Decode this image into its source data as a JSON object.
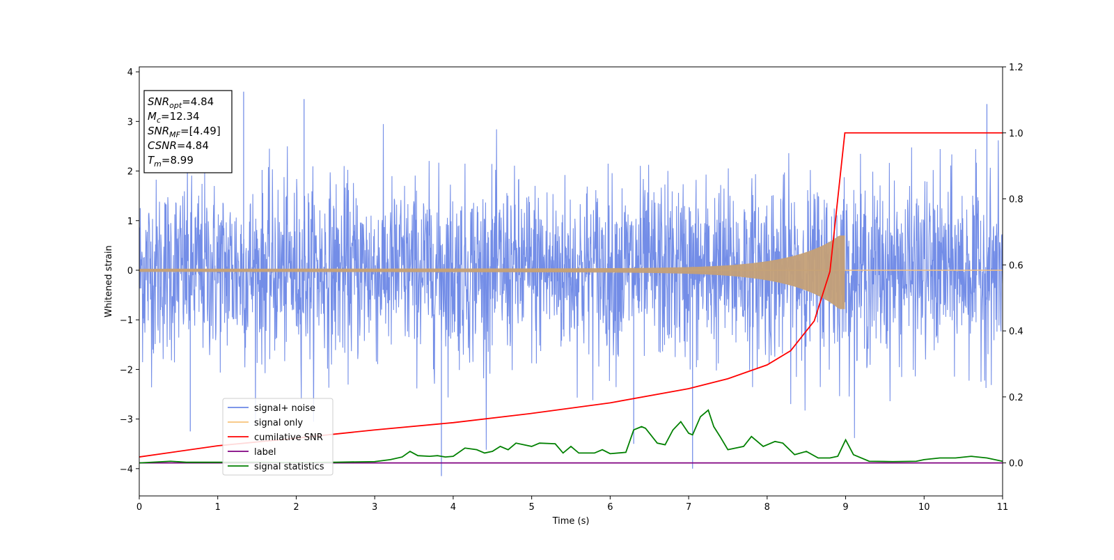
{
  "chart_data": {
    "type": "line",
    "xlabel": "Time (s)",
    "ylabel": "Whitened strain",
    "xlim": [
      0,
      11
    ],
    "ylim_left": [
      -4.55,
      4.1
    ],
    "ylim_right": [
      -0.1,
      1.2
    ],
    "x_ticks": [
      0,
      1,
      2,
      3,
      4,
      5,
      6,
      7,
      8,
      9,
      10,
      11
    ],
    "y_ticks_left": [
      4,
      3,
      2,
      1,
      0,
      -1,
      -2,
      -3,
      -4
    ],
    "y_tick_labels_left": [
      "4",
      "3",
      "2",
      "1",
      "0",
      "−1",
      "−2",
      "−3",
      "−4"
    ],
    "y_ticks_right": [
      1.2,
      1.0,
      0.8,
      0.6,
      0.4,
      0.2,
      0.0
    ],
    "y_tick_labels_right": [
      "1.2",
      "1.0",
      "0.8",
      "0.6",
      "0.4",
      "0.2",
      "0.0"
    ],
    "grid": false,
    "legend_position": "lower-left",
    "legend": [
      {
        "label": "signal+ noise",
        "color": "#6b87e6"
      },
      {
        "label": "signal only",
        "color": "#f7c27a"
      },
      {
        "label": "cumilative SNR",
        "color": "#ff0000"
      },
      {
        "label": "label",
        "color": "#800080"
      },
      {
        "label": "signal statistics",
        "color": "#008000"
      }
    ],
    "annotation": {
      "lines": [
        {
          "main": "SNR",
          "sub": "opt",
          "rest": "=4.84"
        },
        {
          "main": "M",
          "sub": "c",
          "rest": "=12.34"
        },
        {
          "main": "SNR",
          "sub": "MF",
          "rest": "=[4.49]"
        },
        {
          "main": "CSNR",
          "sub": "",
          "rest": "=4.84"
        },
        {
          "main": "T",
          "sub": "m",
          "rest": "=8.99"
        }
      ]
    },
    "series": [
      {
        "name": "signal+ noise",
        "axis": "left",
        "color": "#6b87e6",
        "description_values": {
          "approx_std": 0.9,
          "approx_min": -4.15,
          "approx_max": 3.6,
          "x_range": [
            0,
            11
          ]
        }
      },
      {
        "name": "signal only",
        "axis": "left",
        "color": "#f7c27a",
        "chirp_end_time": 8.99,
        "peak_amplitude": 0.7
      },
      {
        "name": "cumilative SNR",
        "axis": "right",
        "color": "#ff0000",
        "x": [
          0,
          1,
          2,
          3,
          4,
          5,
          6,
          7,
          7.5,
          8,
          8.3,
          8.6,
          8.8,
          8.99,
          9.0,
          11
        ],
        "y": [
          0.018,
          0.052,
          0.075,
          0.1,
          0.122,
          0.15,
          0.182,
          0.225,
          0.255,
          0.297,
          0.34,
          0.43,
          0.58,
          1.0,
          1.0,
          1.0
        ]
      },
      {
        "name": "label",
        "axis": "right",
        "color": "#800080",
        "x": [
          0,
          11
        ],
        "y": [
          0.0,
          0.0
        ]
      },
      {
        "name": "signal statistics",
        "axis": "right",
        "color": "#008000",
        "x": [
          0,
          0.4,
          0.6,
          1,
          1.5,
          2,
          2.5,
          3,
          3.2,
          3.35,
          3.45,
          3.55,
          3.7,
          3.8,
          3.9,
          4.0,
          4.15,
          4.3,
          4.4,
          4.5,
          4.6,
          4.7,
          4.8,
          5.0,
          5.1,
          5.3,
          5.4,
          5.5,
          5.6,
          5.8,
          5.9,
          6.0,
          6.2,
          6.3,
          6.4,
          6.45,
          6.5,
          6.6,
          6.7,
          6.8,
          6.9,
          7.0,
          7.05,
          7.15,
          7.25,
          7.32,
          7.4,
          7.5,
          7.6,
          7.7,
          7.8,
          7.95,
          8.1,
          8.2,
          8.35,
          8.5,
          8.65,
          8.8,
          8.9,
          9.0,
          9.1,
          9.3,
          9.6,
          9.9,
          10.0,
          10.2,
          10.4,
          10.6,
          10.8,
          11
        ],
        "y": [
          0.0,
          0.005,
          0.002,
          0.002,
          0.002,
          0.001,
          0.002,
          0.004,
          0.01,
          0.018,
          0.035,
          0.022,
          0.02,
          0.022,
          0.018,
          0.02,
          0.045,
          0.04,
          0.03,
          0.035,
          0.05,
          0.04,
          0.06,
          0.05,
          0.06,
          0.058,
          0.03,
          0.05,
          0.03,
          0.03,
          0.04,
          0.028,
          0.032,
          0.1,
          0.11,
          0.105,
          0.09,
          0.06,
          0.055,
          0.1,
          0.125,
          0.09,
          0.085,
          0.14,
          0.16,
          0.11,
          0.08,
          0.04,
          0.045,
          0.05,
          0.08,
          0.05,
          0.065,
          0.06,
          0.025,
          0.035,
          0.015,
          0.015,
          0.02,
          0.07,
          0.025,
          0.005,
          0.004,
          0.005,
          0.01,
          0.015,
          0.015,
          0.02,
          0.015,
          0.005
        ]
      }
    ]
  }
}
